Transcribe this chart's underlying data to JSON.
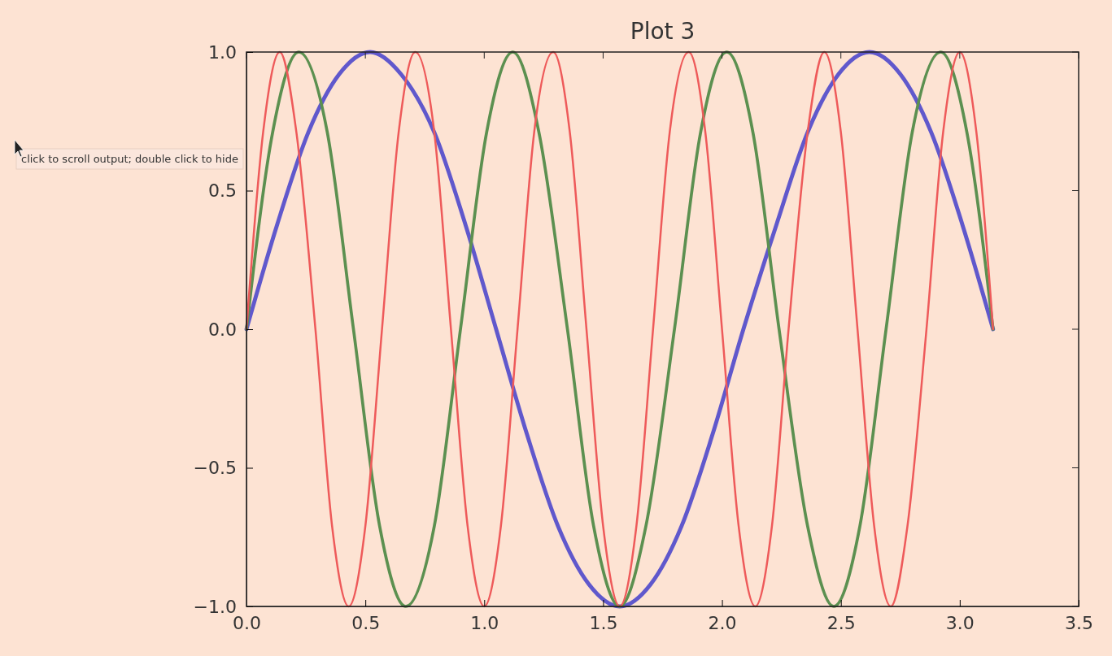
{
  "chart_data": {
    "type": "line",
    "title": "Plot 3",
    "xlim": [
      0,
      3.5
    ],
    "xticks": [
      {
        "value": 0,
        "label": "0.0"
      },
      {
        "value": 0.5,
        "label": "0.5"
      },
      {
        "value": 1,
        "label": "1.0"
      },
      {
        "value": 1.5,
        "label": "1.5"
      },
      {
        "value": 2,
        "label": "2.0"
      },
      {
        "value": 2.5,
        "label": "2.5"
      },
      {
        "value": 3,
        "label": "3.0"
      },
      {
        "value": 3.5,
        "label": "3.5"
      }
    ],
    "ylim": [
      -1,
      1
    ],
    "yticks": [
      {
        "value": -1,
        "label": "−1.0"
      },
      {
        "value": -0.5,
        "label": "−0.5"
      },
      {
        "value": 0,
        "label": "0.0"
      },
      {
        "value": 0.5,
        "label": "0.5"
      },
      {
        "value": 1,
        "label": "1.0"
      }
    ],
    "annotations": [
      "click to scroll output; double click to hide"
    ],
    "series": [
      {
        "color": "#6058cc",
        "x": [
          0,
          0.13,
          0.26,
          0.39,
          0.52,
          0.65,
          0.79,
          0.92,
          1.05,
          1.18,
          1.31,
          1.44,
          1.57,
          1.7,
          1.83,
          1.96,
          2.09,
          2.23,
          2.36,
          2.49,
          2.62,
          2.75,
          2.88,
          3.01,
          3.14
        ],
        "values": [
          0,
          0.38,
          0.71,
          0.92,
          1,
          0.92,
          0.71,
          0.38,
          0,
          -0.38,
          -0.71,
          -0.92,
          -1,
          -0.92,
          -0.71,
          -0.38,
          0,
          0.38,
          0.71,
          0.92,
          1,
          0.92,
          0.71,
          0.38,
          0
        ]
      },
      {
        "color": "#5c9050",
        "x": [
          0,
          0.11,
          0.22,
          0.34,
          0.45,
          0.56,
          0.67,
          0.79,
          0.9,
          1.01,
          1.12,
          1.23,
          1.35,
          1.46,
          1.57,
          1.68,
          1.8,
          1.91,
          2.02,
          2.13,
          2.24,
          2.36,
          2.47,
          2.58,
          2.69,
          2.8,
          2.92,
          3.03,
          3.14
        ],
        "values": [
          0,
          0.71,
          1,
          0.71,
          0,
          -0.71,
          -1,
          -0.71,
          0,
          0.71,
          1,
          0.71,
          0,
          -0.71,
          -1,
          -0.71,
          0,
          0.71,
          1,
          0.71,
          0,
          -0.71,
          -1,
          -0.71,
          0,
          0.71,
          1,
          0.71,
          0
        ]
      },
      {
        "color": "#ee5a5a",
        "x": [
          0,
          0.07,
          0.14,
          0.21,
          0.29,
          0.36,
          0.43,
          0.5,
          0.57,
          0.64,
          0.71,
          0.79,
          0.86,
          0.93,
          1.0,
          1.07,
          1.14,
          1.21,
          1.29,
          1.36,
          1.43,
          1.5,
          1.57,
          1.64,
          1.71,
          1.78,
          1.86,
          1.93,
          2.0,
          2.07,
          2.14,
          2.21,
          2.28,
          2.36,
          2.43,
          2.5,
          2.57,
          2.64,
          2.71,
          2.78,
          2.86,
          2.93,
          3.0,
          3.07,
          3.14
        ],
        "values": [
          0,
          0.71,
          1,
          0.71,
          0,
          -0.71,
          -1,
          -0.71,
          0,
          0.71,
          1,
          0.71,
          0,
          -0.71,
          -1,
          -0.71,
          0,
          0.71,
          1,
          0.71,
          0,
          -0.71,
          -1,
          -0.71,
          0,
          0.71,
          1,
          0.71,
          0,
          -0.71,
          -1,
          -0.71,
          0,
          0.71,
          1,
          0.71,
          0,
          -0.71,
          -1,
          -0.71,
          0,
          0.71,
          1,
          0.71,
          0
        ]
      }
    ]
  }
}
